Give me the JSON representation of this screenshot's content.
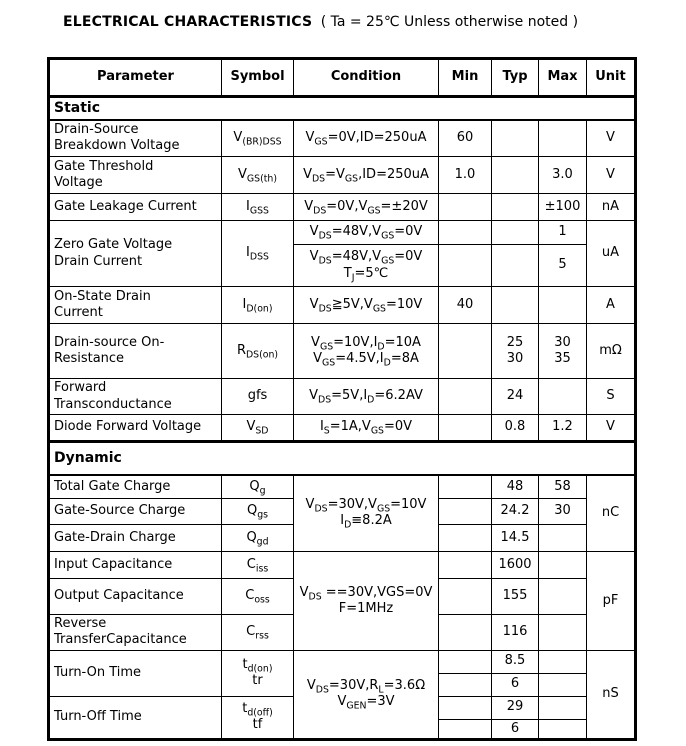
{
  "title": {
    "main": "ELECTRICAL CHARACTERISTICS",
    "note": "( Ta = 25℃ Unless otherwise noted )"
  },
  "colors": {
    "text": "#000000",
    "border": "#000000",
    "background": "#ffffff"
  },
  "table": {
    "headers": {
      "parameter": "Parameter",
      "symbol": "Symbol",
      "condition": "Condition",
      "min": "Min",
      "typ": "Typ",
      "max": "Max",
      "unit": "Unit"
    },
    "sections": {
      "static": "Static",
      "dynamic": "Dynamic"
    },
    "rows": {
      "breakdown": {
        "param": "Drain-Source\nBreakdown Voltage",
        "symbol": "V~(BR)DSS~",
        "cond": "V~GS~=0V,ID=250uA",
        "min": "60",
        "unit": "V"
      },
      "threshold": {
        "param": "Gate Threshold\nVoltage",
        "symbol": "V~GS(th)~",
        "cond": "V~DS~=V~GS~,ID=250uA",
        "min": "1.0",
        "max": "3.0",
        "unit": "V"
      },
      "leakage": {
        "param": "Gate Leakage Current",
        "symbol": "I~GSS~",
        "cond": "V~DS~=0V,V~GS~=±20V",
        "max": "±100",
        "unit": "nA"
      },
      "zero_gate": {
        "param": "Zero Gate Voltage\nDrain Current",
        "symbol": "I~DSS~",
        "cond1": "V~DS~=48V,V~GS~=0V",
        "max1": "1",
        "cond2": "V~DS~=48V,V~GS~=0V\nT~J~=5℃",
        "max2": "5",
        "unit": "uA"
      },
      "on_state": {
        "param": "On-State Drain\nCurrent",
        "symbol": "I~D(on)~",
        "cond": "V~DS~≧5V,V~GS~=10V",
        "min": "40",
        "unit": "A"
      },
      "rds_on": {
        "param": "Drain-source On-\nResistance",
        "symbol": "R~DS(on)~",
        "cond": "V~GS~=10V,I~D~=10A\nV~GS~=4.5V,I~D~=8A",
        "typ": "25\n30",
        "max": "30\n35",
        "unit": "mΩ"
      },
      "gfs": {
        "param": "Forward\nTransconductance",
        "symbol": "gfs",
        "cond": "V~DS~=5V,I~D~=6.2AV",
        "typ": "24",
        "unit": "S"
      },
      "vsd": {
        "param": "Diode Forward Voltage",
        "symbol": "V~SD~",
        "cond": "I~S~=1A,V~GS~=0V",
        "typ": "0.8",
        "max": "1.2",
        "unit": "V"
      },
      "qg": {
        "param": "Total Gate Charge",
        "symbol": "Q~g~",
        "typ": "48",
        "max": "58"
      },
      "qgs": {
        "param": "Gate-Source Charge",
        "symbol": "Q~gs~",
        "typ": "24.2",
        "max": "30"
      },
      "qgd": {
        "param": "Gate-Drain Charge",
        "symbol": "Q~gd~",
        "typ": "14.5"
      },
      "charge_cond": "V~DS~=30V,V~GS~=10V\nI~D~≡8.2A",
      "charge_unit": "nC",
      "ciss": {
        "param": "Input Capacitance",
        "symbol": "C~iss~",
        "typ": "1600"
      },
      "coss": {
        "param": "Output Capacitance",
        "symbol": "C~oss~",
        "typ": "155"
      },
      "crss": {
        "param": "Reverse\nTransferCapacitance",
        "symbol": "C~rss~",
        "typ": "116"
      },
      "cap_cond": "V~DS~ ==30V,VGS=0V\nF=1MHz",
      "cap_unit": "pF",
      "ton": {
        "param": "Turn-On Time",
        "symbol": "t~d(on)~\ntr",
        "typ1": "8.5",
        "typ2": "6"
      },
      "toff": {
        "param": "Turn-Off Time",
        "symbol": "t~d(off)~\ntf",
        "typ1": "29",
        "typ2": "6"
      },
      "sw_cond": "V~DS~=30V,R~L~=3.6Ω\nV~GEN~=3V",
      "sw_unit": "nS"
    }
  }
}
